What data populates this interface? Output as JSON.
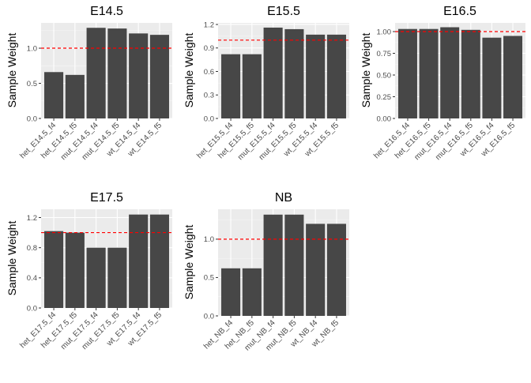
{
  "chart_data": [
    {
      "type": "bar",
      "title": "E14.5",
      "ylabel": "Sample Weight",
      "categories": [
        "het_E14.5_f4",
        "het_E14.5_f5",
        "mut_E14.5_f4",
        "mut_E14.5_f5",
        "wt_E14.5_f4",
        "wt_E14.5_f5"
      ],
      "values": [
        0.66,
        0.62,
        1.29,
        1.28,
        1.21,
        1.19
      ],
      "yticks": [
        0.0,
        0.5,
        1.0
      ],
      "ytick_labels": [
        "0.0",
        "0.5",
        "1.0"
      ],
      "ylim": [
        0,
        1.36
      ],
      "hline": 1.0
    },
    {
      "type": "bar",
      "title": "E15.5",
      "ylabel": "Sample Weight",
      "categories": [
        "het_E15.5_f4",
        "het_E15.5_f5",
        "mut_E15.5_f4",
        "mut_E15.5_f5",
        "wt_E15.5_f4",
        "wt_E15.5_f5"
      ],
      "values": [
        0.82,
        0.82,
        1.16,
        1.14,
        1.07,
        1.07
      ],
      "yticks": [
        0.0,
        0.3,
        0.6,
        0.9,
        1.2
      ],
      "ytick_labels": [
        "0.0",
        "0.3",
        "0.6",
        "0.9",
        "1.2"
      ],
      "ylim": [
        0,
        1.22
      ],
      "hline": 1.0
    },
    {
      "type": "bar",
      "title": "E16.5",
      "ylabel": "Sample Weight",
      "categories": [
        "het_E16.5_f4",
        "het_E16.5_f5",
        "mut_E16.5_f4",
        "mut_E16.5_f5",
        "wt_E16.5_f4",
        "wt_E16.5_f5"
      ],
      "values": [
        1.03,
        1.03,
        1.05,
        1.02,
        0.93,
        0.95
      ],
      "yticks": [
        0.0,
        0.25,
        0.5,
        0.75,
        1.0
      ],
      "ytick_labels": [
        "0.00",
        "0.25",
        "0.50",
        "0.75",
        "1.00"
      ],
      "ylim": [
        0,
        1.1
      ],
      "hline": 1.0
    },
    {
      "type": "bar",
      "title": "E17.5",
      "ylabel": "Sample Weight",
      "categories": [
        "het_E17.5_f4",
        "het_E17.5_f5",
        "mut_E17.5_f4",
        "mut_E17.5_f5",
        "wt_E17.5_f4",
        "wt_E17.5_f5"
      ],
      "values": [
        1.02,
        1.0,
        0.8,
        0.8,
        1.24,
        1.24
      ],
      "yticks": [
        0.0,
        0.4,
        0.8,
        1.2
      ],
      "ytick_labels": [
        "0.0",
        "0.4",
        "0.8",
        "1.2"
      ],
      "ylim": [
        0,
        1.31
      ],
      "hline": 1.0
    },
    {
      "type": "bar",
      "title": "NB",
      "ylabel": "Sample Weight",
      "categories": [
        "het_NB_f4",
        "het_NB_f5",
        "mut_NB_f4",
        "mut_NB_f5",
        "wt_NB_f4",
        "wt_NB_f5"
      ],
      "values": [
        0.62,
        0.62,
        1.32,
        1.32,
        1.2,
        1.2
      ],
      "yticks": [
        0.0,
        0.5,
        1.0
      ],
      "ytick_labels": [
        "0.0",
        "0.5",
        "1.0"
      ],
      "ylim": [
        0,
        1.39
      ],
      "hline": 1.0
    }
  ],
  "colors": {
    "panel_bg": "#ebebeb",
    "grid_major": "#ffffff",
    "grid_minor": "#f5f5f5",
    "bar": "#474747",
    "hline": "#ff0000",
    "tick_text": "#4d4d4d",
    "axis_text": "#000000"
  }
}
